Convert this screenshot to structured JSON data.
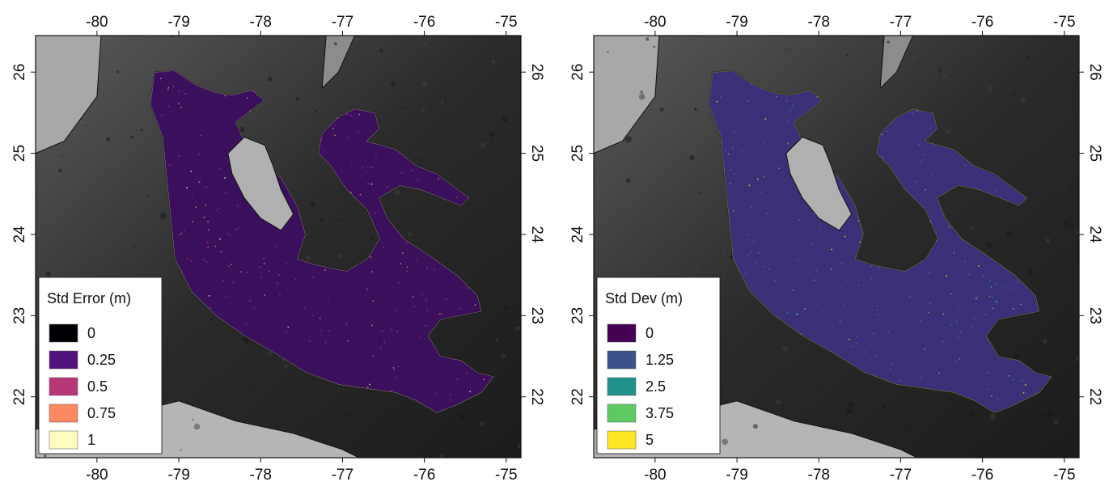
{
  "panels": [
    {
      "id": "std-error",
      "legend": {
        "title": "Std Error (m)",
        "items": [
          {
            "label": "0",
            "color": "#000004"
          },
          {
            "label": "0.25",
            "color": "#51127c"
          },
          {
            "label": "0.5",
            "color": "#b73779"
          },
          {
            "label": "0.75",
            "color": "#fc8961"
          },
          {
            "label": "1",
            "color": "#fcfdbf"
          }
        ]
      },
      "fill_colors": {
        "base": "#3a0f5c",
        "mid": "#51127c",
        "speckle": "#b73779",
        "hot": "#fc8961",
        "max": "#fcfdbf"
      }
    },
    {
      "id": "std-dev",
      "legend": {
        "title": "Std Dev (m)",
        "items": [
          {
            "label": "0",
            "color": "#440154"
          },
          {
            "label": "1.25",
            "color": "#3b528b"
          },
          {
            "label": "2.5",
            "color": "#21918c"
          },
          {
            "label": "3.75",
            "color": "#5ec962"
          },
          {
            "label": "5",
            "color": "#fde725"
          }
        ]
      },
      "fill_colors": {
        "base": "#3b2f78",
        "mid": "#2e4a8a",
        "speckle": "#21918c",
        "hot": "#5ec962",
        "max": "#fde725"
      }
    }
  ],
  "axes": {
    "x_ticks": [
      "-80",
      "-79",
      "-78",
      "-77",
      "-76",
      "-75"
    ],
    "y_ticks": [
      "22",
      "23",
      "24",
      "25",
      "26"
    ]
  }
}
